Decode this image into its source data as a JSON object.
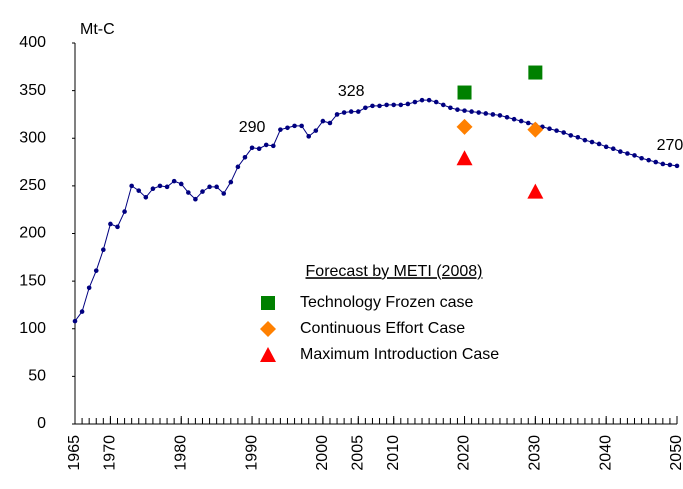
{
  "chart_data": {
    "type": "line",
    "y_label": "Mt-C",
    "xlim": [
      1965,
      2050
    ],
    "ylim": [
      0,
      400
    ],
    "xticks": [
      1965,
      1970,
      1980,
      1990,
      2000,
      2005,
      2010,
      2020,
      2030,
      2040,
      2050
    ],
    "minor_tick_step": 1,
    "yticks": [
      0,
      50,
      100,
      150,
      200,
      250,
      300,
      350,
      400
    ],
    "grid": false,
    "legend_title": "Forecast by METI (2008)",
    "series": [
      {
        "marker": "dot",
        "color": "#000080",
        "x": [
          1965,
          1966,
          1967,
          1968,
          1969,
          1970,
          1971,
          1972,
          1973,
          1974,
          1975,
          1976,
          1977,
          1978,
          1979,
          1980,
          1981,
          1982,
          1983,
          1984,
          1985,
          1986,
          1987,
          1988,
          1989,
          1990,
          1991,
          1992,
          1993,
          1994,
          1995,
          1996,
          1997,
          1998,
          1999,
          2000,
          2001,
          2002,
          2003,
          2004,
          2005,
          2006,
          2007,
          2008,
          2009,
          2010,
          2011,
          2012,
          2013,
          2014,
          2015,
          2016,
          2017,
          2018,
          2019,
          2020,
          2021,
          2022,
          2023,
          2024,
          2025,
          2026,
          2027,
          2028,
          2029,
          2030,
          2031,
          2032,
          2033,
          2034,
          2035,
          2036,
          2037,
          2038,
          2039,
          2040,
          2041,
          2042,
          2043,
          2044,
          2045,
          2046,
          2047,
          2048,
          2049,
          2050
        ],
        "values": [
          108,
          118,
          143,
          161,
          183,
          210,
          207,
          223,
          250,
          245,
          238,
          247,
          250,
          249,
          255,
          252,
          243,
          236,
          244,
          249,
          249,
          242,
          254,
          270,
          280,
          290,
          289,
          293,
          292,
          309,
          311,
          313,
          313,
          302,
          308,
          318,
          316,
          325,
          327,
          328,
          328,
          332,
          334,
          334,
          335,
          335,
          335,
          336,
          338,
          340,
          340,
          338,
          335,
          332,
          330,
          329,
          328,
          327,
          326,
          325,
          324,
          322,
          320,
          318,
          316,
          314,
          312,
          310,
          308,
          306,
          303,
          301,
          298,
          296,
          294,
          291,
          289,
          286,
          284,
          282,
          279,
          277,
          275,
          273,
          272,
          271
        ]
      },
      {
        "name": "Technology Frozen case",
        "marker": "square",
        "color": "#008000",
        "x": [
          2020,
          2030
        ],
        "values": [
          348,
          369
        ]
      },
      {
        "name": "Continuous Effort Case",
        "marker": "diamond",
        "color": "#ff8000",
        "x": [
          2020,
          2030
        ],
        "values": [
          312,
          309
        ]
      },
      {
        "name": "Maximum Introduction Case",
        "marker": "triangle",
        "color": "#ff0000",
        "x": [
          2020,
          2030
        ],
        "values": [
          279,
          244
        ]
      }
    ],
    "annotations": [
      {
        "text": "290",
        "x": 1990,
        "y": 290
      },
      {
        "text": "328",
        "x": 2004,
        "y": 328
      },
      {
        "text": "270",
        "x": 2049,
        "y": 271
      }
    ]
  }
}
